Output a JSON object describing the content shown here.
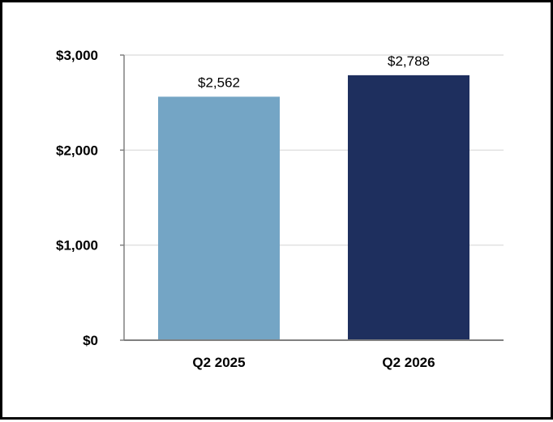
{
  "chart_data": {
    "type": "bar",
    "categories": [
      "Q2 2025",
      "Q2 2026"
    ],
    "values": [
      2562,
      2788
    ],
    "value_labels": [
      "$2,562",
      "$2,788"
    ],
    "bar_colors": [
      "#74a5c5",
      "#1e2f5e"
    ],
    "yticks": [
      0,
      1000,
      2000,
      3000
    ],
    "ytick_labels": [
      "$0",
      "$1,000",
      "$2,000",
      "$3,000"
    ],
    "ylim": [
      0,
      3000
    ],
    "grid": true,
    "gridline_color": "#e0e0e0",
    "axis_color": "#808080",
    "title": "",
    "xlabel": "",
    "ylabel": ""
  }
}
